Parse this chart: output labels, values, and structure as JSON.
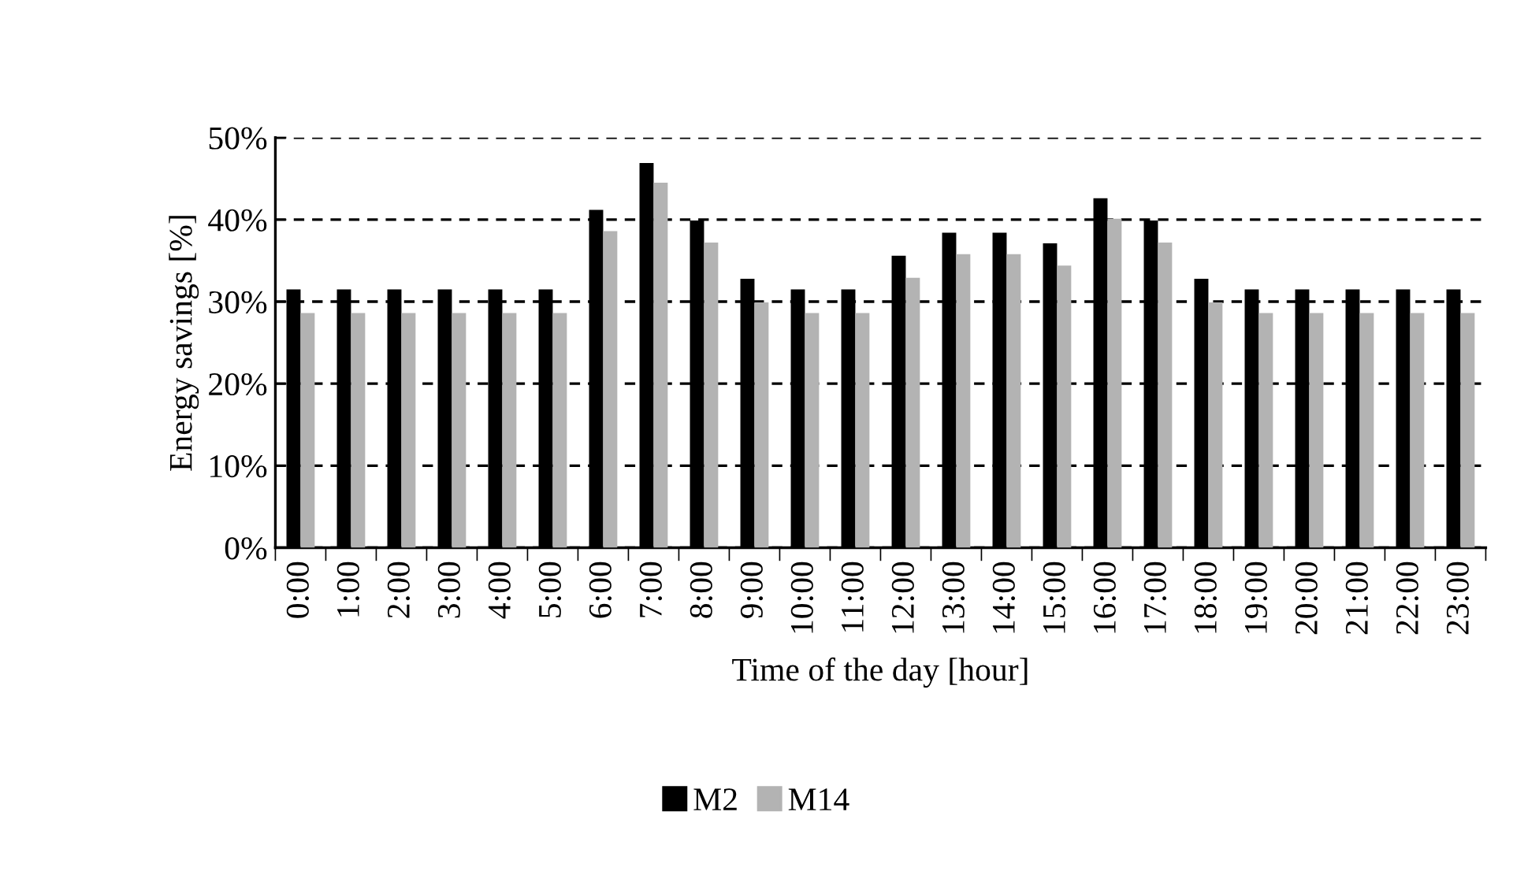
{
  "chart_data": {
    "type": "bar",
    "xlabel": "Time of the day [hour]",
    "ylabel": "Energy savings [%]",
    "categories": [
      "0:00",
      "1:00",
      "2:00",
      "3:00",
      "4:00",
      "5:00",
      "6:00",
      "7:00",
      "8:00",
      "9:00",
      "10:00",
      "11:00",
      "12:00",
      "13:00",
      "14:00",
      "15:00",
      "16:00",
      "17:00",
      "18:00",
      "19:00",
      "20:00",
      "21:00",
      "22:00",
      "23:00"
    ],
    "series": [
      {
        "name": "M2",
        "color": "#000000",
        "values": [
          31.5,
          31.5,
          31.5,
          31.5,
          31.5,
          31.5,
          41.2,
          46.9,
          39.9,
          32.8,
          31.5,
          31.5,
          35.6,
          38.4,
          38.4,
          37.1,
          42.6,
          39.9,
          32.8,
          31.5,
          31.5,
          31.5,
          31.5,
          31.5
        ]
      },
      {
        "name": "M14",
        "color": "#b3b3b3",
        "values": [
          28.6,
          28.6,
          28.6,
          28.6,
          28.6,
          28.6,
          38.6,
          44.5,
          37.2,
          29.9,
          28.6,
          28.6,
          32.9,
          35.8,
          35.8,
          34.4,
          40.1,
          37.2,
          29.9,
          28.6,
          28.6,
          28.6,
          28.6,
          28.6
        ]
      }
    ],
    "ylim": [
      0,
      50
    ],
    "yticks": [
      {
        "value": 0,
        "label": "0%"
      },
      {
        "value": 10,
        "label": "10%"
      },
      {
        "value": 20,
        "label": "20%"
      },
      {
        "value": 30,
        "label": "30%"
      },
      {
        "value": 40,
        "label": "40%"
      },
      {
        "value": 50,
        "label": "50%"
      }
    ],
    "grid": "y",
    "legend": "bottom"
  }
}
